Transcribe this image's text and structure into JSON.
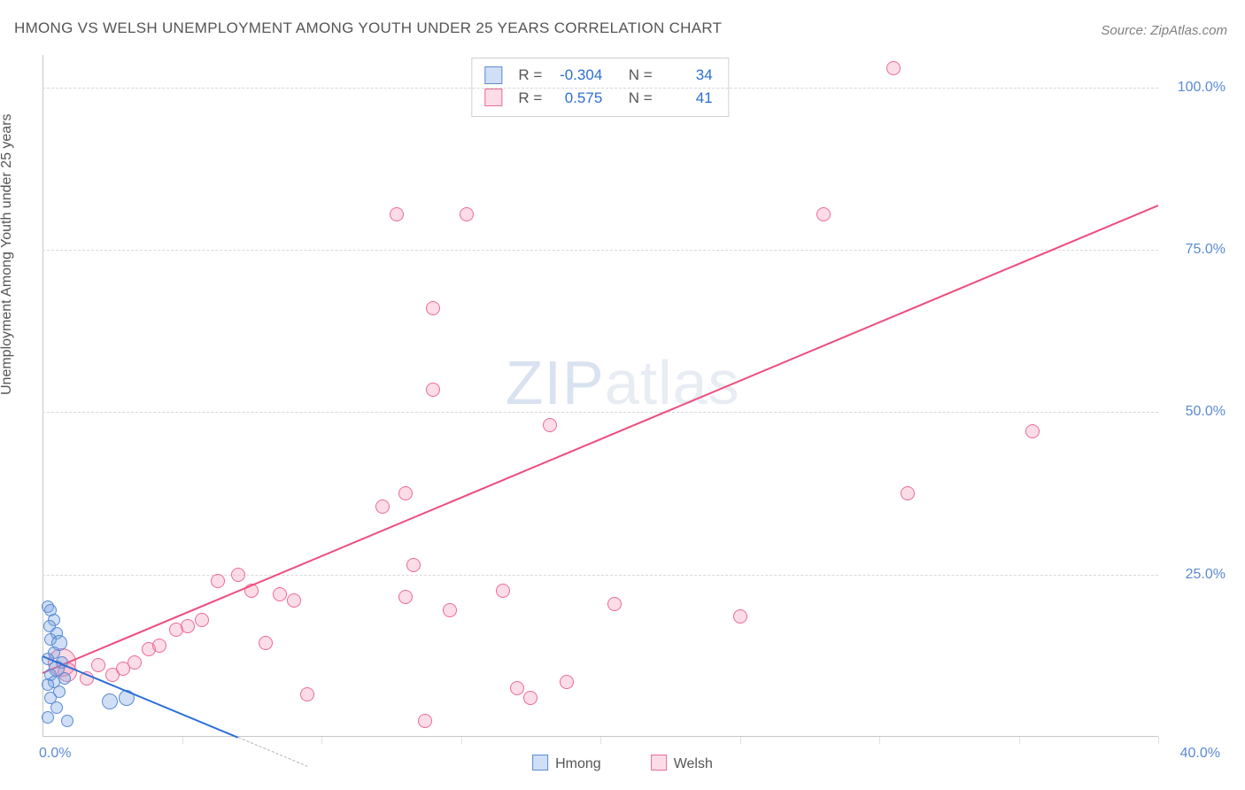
{
  "title": "HMONG VS WELSH UNEMPLOYMENT AMONG YOUTH UNDER 25 YEARS CORRELATION CHART",
  "source_prefix": "Source: ",
  "source_name": "ZipAtlas.com",
  "watermark_a": "ZIP",
  "watermark_b": "atlas",
  "chart": {
    "type": "scatter",
    "background_color": "#ffffff",
    "grid_color": "#d8d8d8",
    "axis_color": "#c8c8c8",
    "xlim": [
      0,
      40
    ],
    "ylim": [
      0,
      105
    ],
    "x_tick_positions": [
      0,
      5,
      10,
      15,
      20,
      25,
      30,
      35,
      40
    ],
    "y_tick_positions": [
      25,
      50,
      75,
      100
    ],
    "y_tick_labels": [
      "25.0%",
      "50.0%",
      "75.0%",
      "100.0%"
    ],
    "x_origin_label": "0.0%",
    "x_end_label": "40.0%",
    "y_axis_title": "Unemployment Among Youth under 25 years",
    "tick_label_color": "#5a8ad4",
    "tick_label_fontsize": 16,
    "axis_title_fontsize": 16,
    "axis_title_color": "#555555"
  },
  "series": {
    "hmong": {
      "label": "Hmong",
      "fill": "rgba(121,164,226,0.35)",
      "stroke": "#5a8ad4",
      "marker_radius": 7,
      "points": [
        {
          "x": 0.2,
          "y": 20.0,
          "r": 7
        },
        {
          "x": 0.3,
          "y": 19.5,
          "r": 7
        },
        {
          "x": 0.4,
          "y": 18.0,
          "r": 7
        },
        {
          "x": 0.25,
          "y": 17.0,
          "r": 7
        },
        {
          "x": 0.5,
          "y": 16.0,
          "r": 7
        },
        {
          "x": 0.3,
          "y": 15.0,
          "r": 7
        },
        {
          "x": 0.6,
          "y": 14.5,
          "r": 9
        },
        {
          "x": 0.4,
          "y": 13.0,
          "r": 7
        },
        {
          "x": 0.2,
          "y": 12.0,
          "r": 7
        },
        {
          "x": 0.7,
          "y": 11.5,
          "r": 7
        },
        {
          "x": 0.5,
          "y": 10.5,
          "r": 9
        },
        {
          "x": 0.3,
          "y": 9.5,
          "r": 7
        },
        {
          "x": 0.8,
          "y": 9.0,
          "r": 7
        },
        {
          "x": 0.4,
          "y": 8.5,
          "r": 7
        },
        {
          "x": 0.2,
          "y": 8.0,
          "r": 7
        },
        {
          "x": 0.6,
          "y": 7.0,
          "r": 7
        },
        {
          "x": 0.3,
          "y": 6.0,
          "r": 7
        },
        {
          "x": 0.5,
          "y": 4.5,
          "r": 7
        },
        {
          "x": 0.2,
          "y": 3.0,
          "r": 7
        },
        {
          "x": 0.9,
          "y": 2.5,
          "r": 7
        },
        {
          "x": 2.4,
          "y": 5.5,
          "r": 9
        },
        {
          "x": 3.0,
          "y": 6.0,
          "r": 9
        }
      ],
      "trend": {
        "x1": 0.0,
        "y1": 12.5,
        "x2": 7.0,
        "y2": 0.0,
        "color": "#2b6fd6",
        "width": 2,
        "dash": false
      },
      "trend_ext": {
        "x1": 7.0,
        "y1": 0.0,
        "x2": 9.5,
        "y2": -4.5,
        "color": "#b0b0b0",
        "width": 1.5,
        "dash": true
      },
      "stats": {
        "R": "-0.304",
        "N": "34"
      }
    },
    "welsh": {
      "label": "Welsh",
      "fill": "rgba(244,143,177,0.30)",
      "stroke": "#ec6a92",
      "marker_radius": 8,
      "points": [
        {
          "x": 0.7,
          "y": 11.5,
          "r": 16
        },
        {
          "x": 0.9,
          "y": 10.0,
          "r": 11
        },
        {
          "x": 1.6,
          "y": 9.0,
          "r": 8
        },
        {
          "x": 2.0,
          "y": 11.0,
          "r": 8
        },
        {
          "x": 2.5,
          "y": 9.5,
          "r": 8
        },
        {
          "x": 2.9,
          "y": 10.5,
          "r": 8
        },
        {
          "x": 3.3,
          "y": 11.5,
          "r": 8
        },
        {
          "x": 3.8,
          "y": 13.5,
          "r": 8
        },
        {
          "x": 4.2,
          "y": 14.0,
          "r": 8
        },
        {
          "x": 4.8,
          "y": 16.5,
          "r": 8
        },
        {
          "x": 5.2,
          "y": 17.0,
          "r": 8
        },
        {
          "x": 5.7,
          "y": 18.0,
          "r": 8
        },
        {
          "x": 6.3,
          "y": 24.0,
          "r": 8
        },
        {
          "x": 7.0,
          "y": 25.0,
          "r": 8
        },
        {
          "x": 7.5,
          "y": 22.5,
          "r": 8
        },
        {
          "x": 8.0,
          "y": 14.5,
          "r": 8
        },
        {
          "x": 8.5,
          "y": 22.0,
          "r": 8
        },
        {
          "x": 9.0,
          "y": 21.0,
          "r": 8
        },
        {
          "x": 9.5,
          "y": 6.5,
          "r": 8
        },
        {
          "x": 12.2,
          "y": 35.5,
          "r": 8
        },
        {
          "x": 12.7,
          "y": 80.5,
          "r": 8
        },
        {
          "x": 13.0,
          "y": 21.5,
          "r": 8
        },
        {
          "x": 13.0,
          "y": 37.5,
          "r": 8
        },
        {
          "x": 13.3,
          "y": 26.5,
          "r": 8
        },
        {
          "x": 13.7,
          "y": 2.5,
          "r": 8
        },
        {
          "x": 14.0,
          "y": 66.0,
          "r": 8
        },
        {
          "x": 14.0,
          "y": 53.5,
          "r": 8
        },
        {
          "x": 14.6,
          "y": 19.5,
          "r": 8
        },
        {
          "x": 15.2,
          "y": 80.5,
          "r": 8
        },
        {
          "x": 16.5,
          "y": 22.5,
          "r": 8
        },
        {
          "x": 17.0,
          "y": 7.5,
          "r": 8
        },
        {
          "x": 17.5,
          "y": 6.0,
          "r": 8
        },
        {
          "x": 18.2,
          "y": 48.0,
          "r": 8
        },
        {
          "x": 18.8,
          "y": 8.5,
          "r": 8
        },
        {
          "x": 20.5,
          "y": 20.5,
          "r": 8
        },
        {
          "x": 25.0,
          "y": 18.5,
          "r": 8
        },
        {
          "x": 28.0,
          "y": 80.5,
          "r": 8
        },
        {
          "x": 30.5,
          "y": 103.0,
          "r": 8
        },
        {
          "x": 31.0,
          "y": 37.5,
          "r": 8
        },
        {
          "x": 35.5,
          "y": 47.0,
          "r": 8
        }
      ],
      "trend": {
        "x1": 0.0,
        "y1": 10.0,
        "x2": 40.0,
        "y2": 82.0,
        "color": "#ec4d7d",
        "width": 2.5,
        "dash": false
      },
      "stats": {
        "R": "0.575",
        "N": "41"
      }
    }
  },
  "legend_bottom": [
    {
      "key": "hmong"
    },
    {
      "key": "welsh"
    }
  ],
  "stats_box_labels": {
    "R": "R =",
    "N": "N ="
  }
}
